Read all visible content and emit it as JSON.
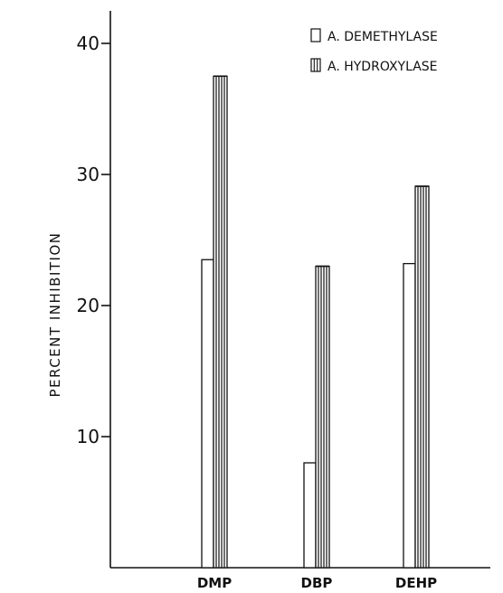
{
  "chart_data": {
    "type": "bar",
    "ylabel": "PERCENT INHIBITION",
    "xlabel": "",
    "ylim": [
      0,
      42
    ],
    "yticks": [
      10,
      20,
      30,
      40
    ],
    "categories": [
      "DMP",
      "DBP",
      "DEHP"
    ],
    "series": [
      {
        "name": "A. DEMETHYLASE",
        "values": [
          23.5,
          8.0,
          23.2
        ],
        "pattern": "open"
      },
      {
        "name": "A. HYDROXYLASE",
        "values": [
          37.5,
          23.0,
          29.1
        ],
        "pattern": "vertical-hatch"
      }
    ],
    "legend": "top-right",
    "grid": false
  }
}
